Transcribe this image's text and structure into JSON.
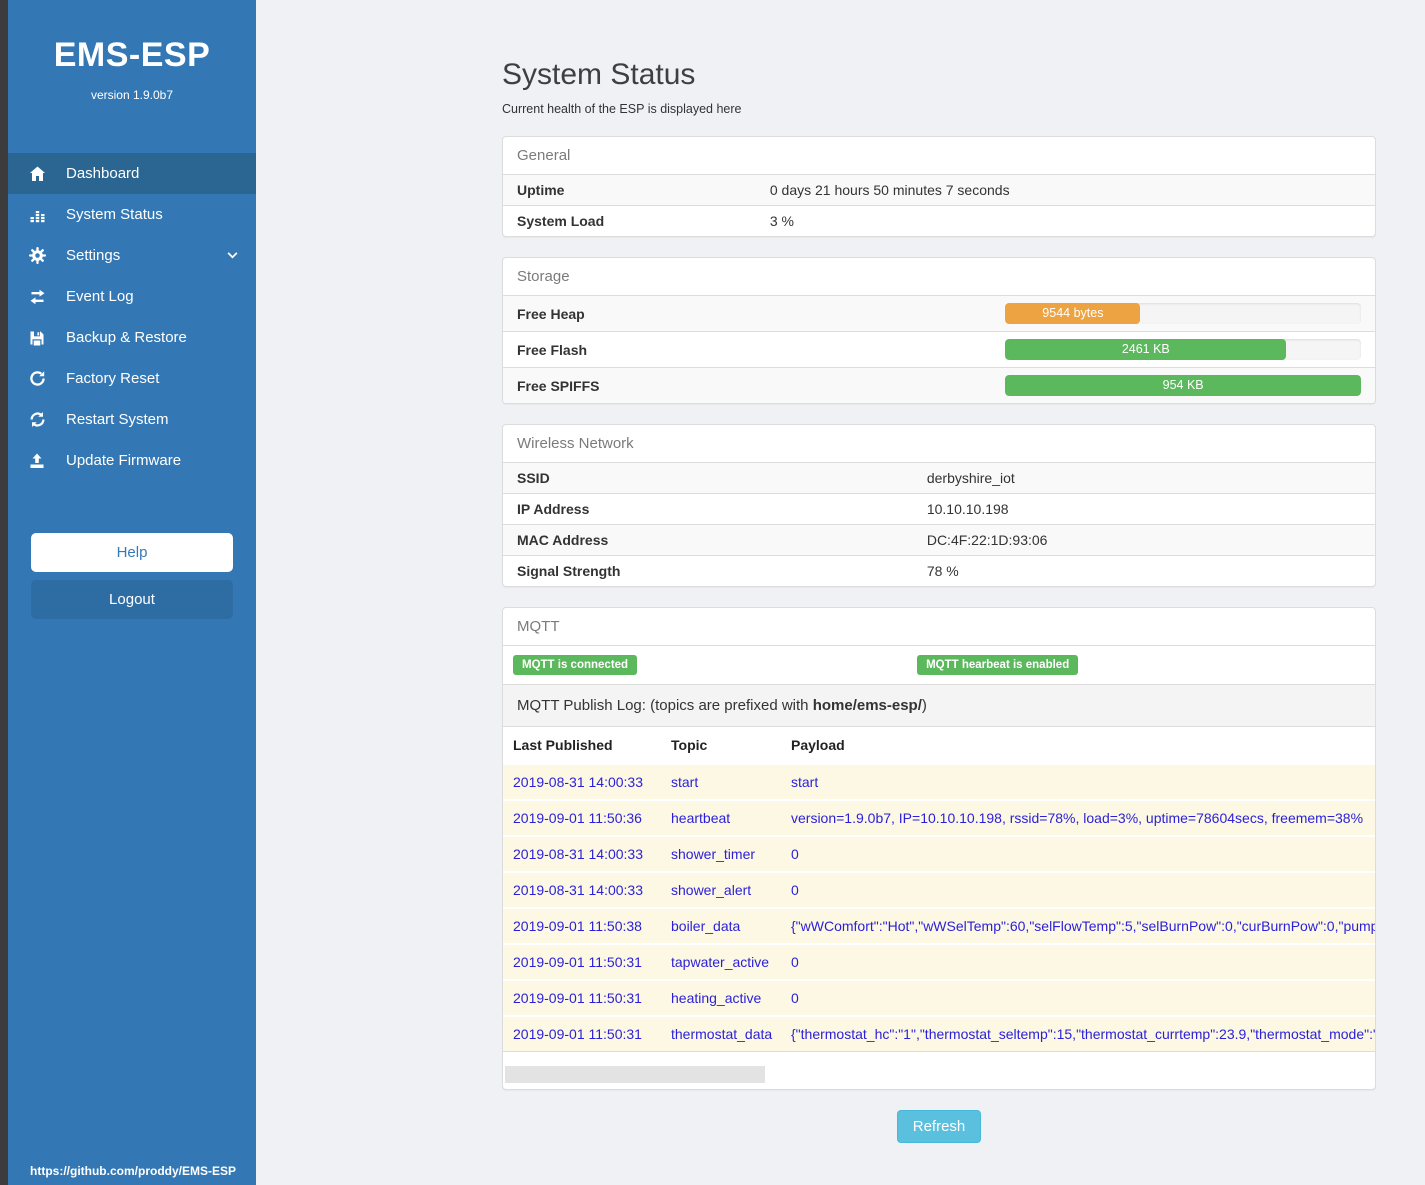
{
  "colors": {
    "sidebar_blue": "#3378b4",
    "sidebar_active_blue": "#2b6591",
    "logout_blue": "#2e6da4",
    "success_green": "#5cb85c",
    "warning_orange": "#eea342",
    "info_blue": "#5bc0de",
    "log_row_cream": "#fcf8e3",
    "log_text_blue": "#2a1fd9"
  },
  "sidebar": {
    "title": "EMS-ESP",
    "version": "version 1.9.0b7",
    "items": [
      {
        "label": "Dashboard",
        "icon": "home-icon",
        "active": true
      },
      {
        "label": "System Status",
        "icon": "chart-icon",
        "active": false
      },
      {
        "label": "Settings",
        "icon": "gear-icon",
        "active": false,
        "chevron": "chevron-down-icon"
      },
      {
        "label": "Event Log",
        "icon": "exchange-icon",
        "active": false
      },
      {
        "label": "Backup & Restore",
        "icon": "floppy-icon",
        "active": false
      },
      {
        "label": "Factory Reset",
        "icon": "rotate-icon",
        "active": false
      },
      {
        "label": "Restart System",
        "icon": "sync-icon",
        "active": false
      },
      {
        "label": "Update Firmware",
        "icon": "upload-icon",
        "active": false
      }
    ],
    "help_label": "Help",
    "logout_label": "Logout",
    "footer_link": "https://github.com/proddy/EMS-ESP"
  },
  "page": {
    "title": "System Status",
    "subtitle": "Current health of the ESP is displayed here"
  },
  "general": {
    "heading": "General",
    "rows": [
      {
        "label": "Uptime",
        "value": "0 days 21 hours 50 minutes 7 seconds"
      },
      {
        "label": "System Load",
        "value": "3 %"
      }
    ]
  },
  "storage": {
    "heading": "Storage",
    "rows": [
      {
        "label": "Free Heap",
        "value": "9544 bytes",
        "percent": 38,
        "color": "orange"
      },
      {
        "label": "Free Flash",
        "value": "2461 KB",
        "percent": 79,
        "color": "green"
      },
      {
        "label": "Free SPIFFS",
        "value": "954 KB",
        "percent": 100,
        "color": "green"
      }
    ]
  },
  "wireless": {
    "heading": "Wireless Network",
    "rows": [
      {
        "label": "SSID",
        "value": "derbyshire_iot"
      },
      {
        "label": "IP Address",
        "value": "10.10.10.198"
      },
      {
        "label": "MAC Address",
        "value": "DC:4F:22:1D:93:06"
      },
      {
        "label": "Signal Strength",
        "value": "78 %"
      }
    ]
  },
  "mqtt": {
    "heading": "MQTT",
    "badges": [
      "MQTT is connected",
      "MQTT hearbeat is enabled"
    ],
    "publog_prefix": "MQTT Publish Log: (topics are prefixed with ",
    "publog_bold": "home/ems-esp/",
    "publog_suffix": ")",
    "table": {
      "headers": [
        "Last Published",
        "Topic",
        "Payload"
      ],
      "rows": [
        {
          "published": "2019-08-31 14:00:33",
          "topic": "start",
          "payload": "start"
        },
        {
          "published": "2019-09-01 11:50:36",
          "topic": "heartbeat",
          "payload": "version=1.9.0b7, IP=10.10.10.198, rssid=78%, load=3%, uptime=78604secs, freemem=38%"
        },
        {
          "published": "2019-08-31 14:00:33",
          "topic": "shower_timer",
          "payload": "0"
        },
        {
          "published": "2019-08-31 14:00:33",
          "topic": "shower_alert",
          "payload": "0"
        },
        {
          "published": "2019-09-01 11:50:38",
          "topic": "boiler_data",
          "payload": "{\"wWComfort\":\"Hot\",\"wWSelTemp\":60,\"selFlowTemp\":5,\"selBurnPow\":0,\"curBurnPow\":0,\"pump"
        },
        {
          "published": "2019-09-01 11:50:31",
          "topic": "tapwater_active",
          "payload": "0"
        },
        {
          "published": "2019-09-01 11:50:31",
          "topic": "heating_active",
          "payload": "0"
        },
        {
          "published": "2019-09-01 11:50:31",
          "topic": "thermostat_data",
          "payload": "{\"thermostat_hc\":\"1\",\"thermostat_seltemp\":15,\"thermostat_currtemp\":23.9,\"thermostat_mode\":\""
        }
      ]
    },
    "refresh_label": "Refresh"
  }
}
